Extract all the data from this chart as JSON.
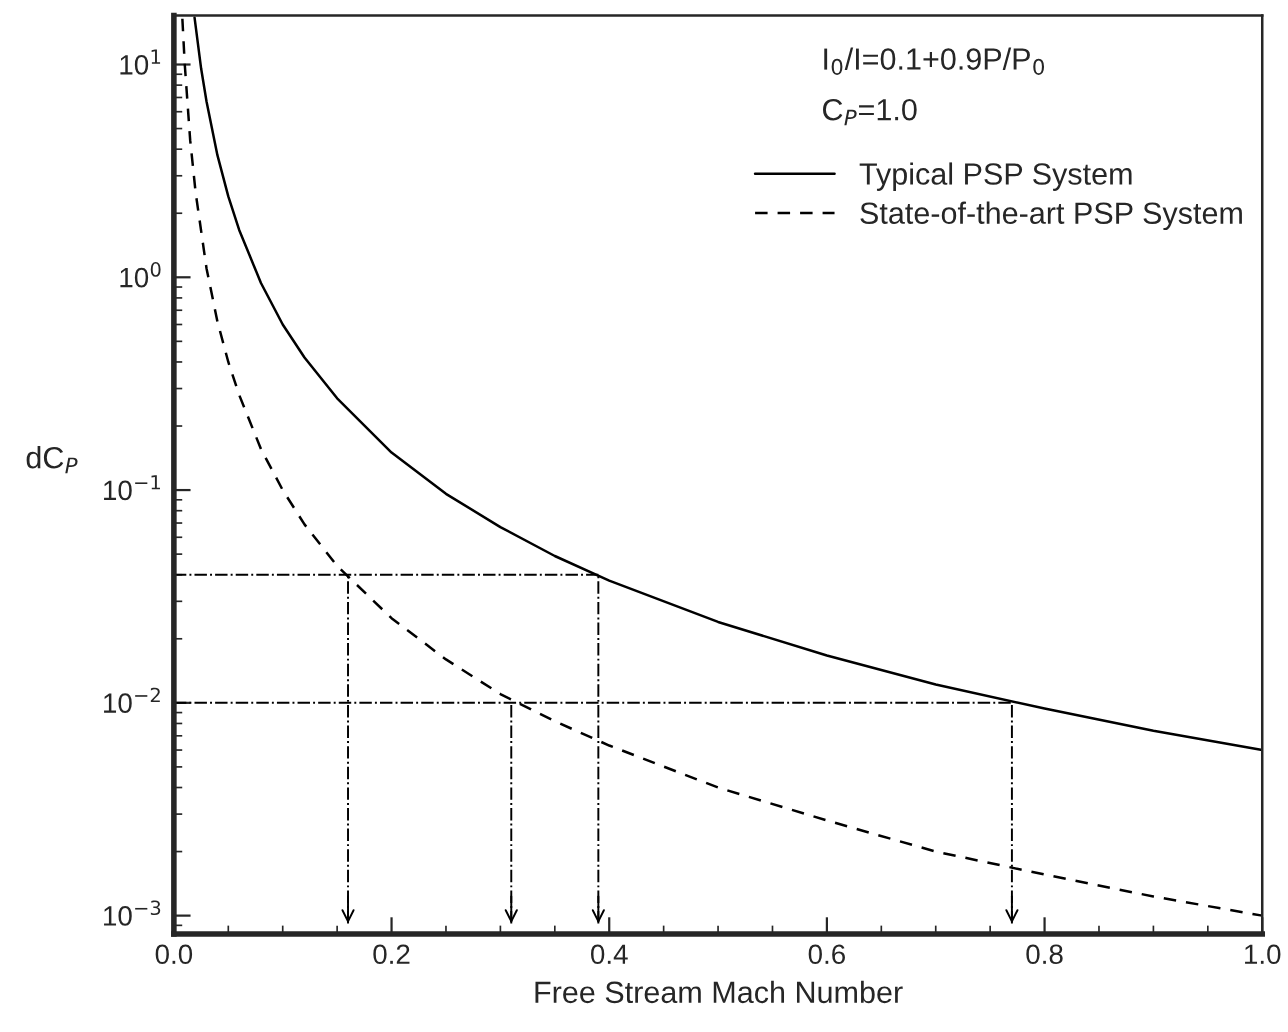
{
  "chart_data": {
    "type": "line",
    "xlabel": "Free Stream Mach Number",
    "ylabel": "dC$_{P}$",
    "log": "y",
    "xlim": [
      0.0,
      1.0
    ],
    "ylim": [
      0.00082,
      17
    ],
    "xticks": [
      {
        "value": 0.0,
        "label": "0.0"
      },
      0.2,
      0.4,
      0.6,
      0.8,
      {
        "value": 1.0,
        "label": "1.0"
      }
    ],
    "yticks": [
      {
        "value": 0.001,
        "label": "10$^{−3}$"
      },
      {
        "value": 0.01,
        "label": "10$^{−2}$"
      },
      {
        "value": 0.1,
        "label": "10$^{−1}$"
      },
      {
        "value": 1,
        "label": "10$^{0}$"
      },
      {
        "value": 10,
        "label": "10$^{1}$"
      }
    ],
    "series": [
      {
        "name": "Typical PSP System",
        "color": "#000000",
        "line_style": "solid",
        "x": [
          0.019,
          0.025,
          0.03,
          0.04,
          0.05,
          0.06,
          0.08,
          0.1,
          0.12,
          0.15,
          0.2,
          0.25,
          0.3,
          0.35,
          0.4,
          0.5,
          0.6,
          0.7,
          0.8,
          0.9,
          1.0
        ],
        "values": [
          16.6,
          9.6,
          6.7,
          3.75,
          2.4,
          1.67,
          0.94,
          0.6,
          0.42,
          0.27,
          0.15,
          0.096,
          0.067,
          0.049,
          0.0375,
          0.024,
          0.0167,
          0.0122,
          0.0094,
          0.0074,
          0.006
        ]
      },
      {
        "name": "State-of-the-art PSP System",
        "color": "#000000",
        "line_style": "dashed",
        "x": [
          0.0078,
          0.01,
          0.015,
          0.02,
          0.03,
          0.04,
          0.05,
          0.06,
          0.08,
          0.1,
          0.12,
          0.15,
          0.2,
          0.25,
          0.3,
          0.35,
          0.4,
          0.5,
          0.6,
          0.7,
          0.8,
          0.9,
          1.0
        ],
        "values": [
          16.4,
          10,
          4.4,
          2.5,
          1.1,
          0.62,
          0.4,
          0.28,
          0.156,
          0.1,
          0.069,
          0.044,
          0.025,
          0.016,
          0.011,
          0.0082,
          0.0063,
          0.004,
          0.0028,
          0.002,
          0.00156,
          0.00123,
          0.001
        ]
      }
    ],
    "ref_lines": [
      {
        "axis": "y",
        "value": 0.04,
        "color": "#000000"
      },
      {
        "axis": "y",
        "value": 0.01,
        "color": "#000000"
      },
      {
        "axis": "x",
        "value": 0.16,
        "color": "#000000"
      },
      {
        "axis": "x",
        "value": 0.31,
        "color": "#000000"
      },
      {
        "axis": "x",
        "value": 0.39,
        "color": "#000000"
      },
      {
        "axis": "x",
        "value": 0.77,
        "color": "#000000"
      }
    ],
    "annotations": [
      "I$_{0}$/I=0.1+0.9P/P$_{0}$",
      "C$_{P}$=1.0"
    ],
    "legend": "top right",
    "grid": false,
    "marker": "none"
  }
}
